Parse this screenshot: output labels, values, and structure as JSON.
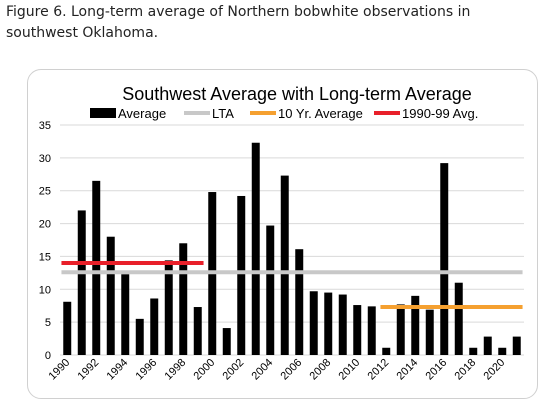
{
  "caption": "Figure 6. Long-term average of Northern bobwhite observations in southwest Oklahoma.",
  "chart_data": {
    "type": "bar",
    "title": "Southwest Average with Long-term Average",
    "xlabel": "",
    "ylabel": "",
    "ylim": [
      0,
      35
    ],
    "yticks": [
      0,
      5,
      10,
      15,
      20,
      25,
      30,
      35
    ],
    "grid": true,
    "legend_position": "top",
    "categories": [
      "1990",
      "1991",
      "1992",
      "1993",
      "1994",
      "1995",
      "1996",
      "1997",
      "1998",
      "1999",
      "2000",
      "2001",
      "2002",
      "2003",
      "2004",
      "2005",
      "2006",
      "2007",
      "2008",
      "2009",
      "2010",
      "2011",
      "2012",
      "2013",
      "2014",
      "2015",
      "2016",
      "2017",
      "2018",
      "2019",
      "2020",
      "2021"
    ],
    "tick_labels": [
      "1990",
      "1992",
      "1994",
      "1996",
      "1998",
      "2000",
      "2002",
      "2004",
      "2006",
      "2008",
      "2010",
      "2012",
      "2014",
      "2016",
      "2018",
      "2020"
    ],
    "series": [
      {
        "name": "Average",
        "type": "bar",
        "color": "#000000",
        "values": [
          8.1,
          22.0,
          26.5,
          18.0,
          12.3,
          5.5,
          8.6,
          14.4,
          17.0,
          7.3,
          24.8,
          4.1,
          24.2,
          32.3,
          19.7,
          27.3,
          16.1,
          9.7,
          9.5,
          9.2,
          7.6,
          7.4,
          1.1,
          7.7,
          9.0,
          6.9,
          29.2,
          11.0,
          1.1,
          2.8,
          1.1,
          2.8
        ]
      },
      {
        "name": "LTA",
        "type": "line",
        "color": "#c8c8c8",
        "value": 12.6,
        "x_start": "1990",
        "x_end": "2021"
      },
      {
        "name": "10 Yr. Average",
        "type": "line",
        "color": "#f5a030",
        "value": 7.3,
        "x_start": "2012",
        "x_end": "2021"
      },
      {
        "name": "1990-99 Avg.",
        "type": "line",
        "color": "#e8202a",
        "value": 14.0,
        "x_start": "1990",
        "x_end": "1999"
      }
    ]
  }
}
